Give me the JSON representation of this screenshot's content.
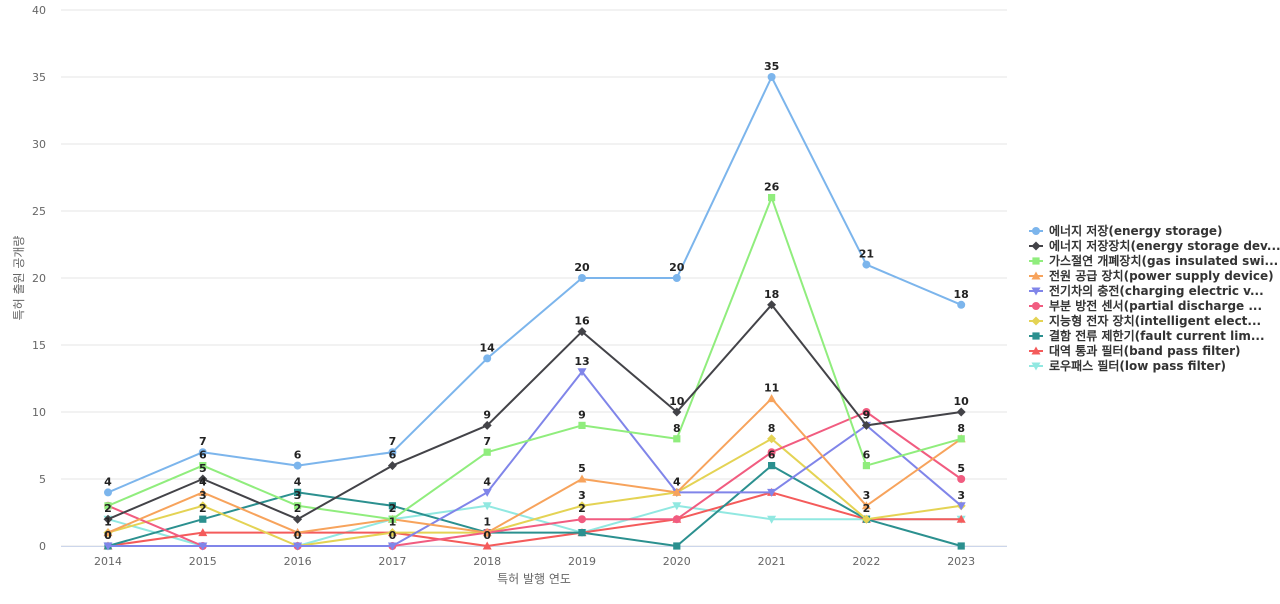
{
  "chart_data": {
    "type": "line",
    "xlabel": "특허 발행 연도",
    "ylabel": "특허 출원 공개량",
    "ylim": [
      0,
      40
    ],
    "yticks": [
      0,
      5,
      10,
      15,
      20,
      25,
      30,
      35,
      40
    ],
    "grid": true,
    "legend_position": "right",
    "categories": [
      "2014",
      "2015",
      "2016",
      "2017",
      "2018",
      "2019",
      "2020",
      "2021",
      "2022",
      "2023"
    ],
    "series": [
      {
        "name": "에너지 저장(energy storage)",
        "color": "#7cb5ec",
        "marker": "circle",
        "values": [
          4,
          7,
          6,
          7,
          14,
          20,
          20,
          35,
          21,
          18
        ]
      },
      {
        "name": "에너지 저장장치(energy storage dev...",
        "color": "#434348",
        "marker": "diamond",
        "values": [
          2,
          5,
          2,
          6,
          9,
          16,
          10,
          18,
          9,
          10
        ]
      },
      {
        "name": "가스절연 개폐장치(gas insulated swi...",
        "color": "#90ed7d",
        "marker": "square",
        "values": [
          3,
          6,
          3,
          2,
          7,
          9,
          8,
          26,
          6,
          8
        ]
      },
      {
        "name": "전원 공급 장치(power supply device)",
        "color": "#f7a35c",
        "marker": "triangle",
        "values": [
          1,
          4,
          1,
          2,
          1,
          5,
          4,
          11,
          3,
          8
        ]
      },
      {
        "name": "전기차의 충전(charging electric v...",
        "color": "#8085e9",
        "marker": "triangle-down",
        "values": [
          0,
          0,
          0,
          0,
          4,
          13,
          4,
          4,
          9,
          3
        ]
      },
      {
        "name": "부분 방전 센서(partial discharge ...",
        "color": "#f15c80",
        "marker": "circle",
        "values": [
          3,
          0,
          0,
          0,
          1,
          2,
          2,
          7,
          10,
          5
        ]
      },
      {
        "name": "지능형 전자 장치(intelligent elect...",
        "color": "#e4d354",
        "marker": "diamond",
        "values": [
          1,
          3,
          0,
          1,
          1,
          3,
          4,
          8,
          2,
          3
        ]
      },
      {
        "name": "결함 전류 제한기(fault current lim...",
        "color": "#2b908f",
        "marker": "square",
        "values": [
          0,
          2,
          4,
          3,
          1,
          1,
          0,
          6,
          2,
          0
        ]
      },
      {
        "name": "대역 통과 필터(band pass filter)",
        "color": "#f45b5b",
        "marker": "triangle",
        "values": [
          0,
          1,
          1,
          1,
          0,
          1,
          2,
          4,
          2,
          2
        ]
      },
      {
        "name": "로우패스 필터(low pass filter)",
        "color": "#91e8e1",
        "marker": "triangle-down",
        "values": [
          2,
          0,
          0,
          2,
          3,
          1,
          3,
          2,
          2,
          2
        ]
      }
    ],
    "data_labels": [
      {
        "series": 0,
        "points": [
          0,
          1,
          2,
          3,
          4,
          5,
          6,
          7,
          8,
          9
        ]
      },
      {
        "series": 1,
        "points": [
          1,
          2,
          3,
          4,
          5,
          6,
          7,
          8,
          9
        ]
      },
      {
        "series": 2,
        "points": [
          1,
          2,
          3,
          4,
          5,
          6,
          7,
          8,
          9
        ]
      },
      {
        "series": 3,
        "points": [
          0,
          1,
          3,
          5,
          6,
          7,
          8
        ]
      },
      {
        "series": 4,
        "points": [
          0,
          2,
          4,
          5,
          8
        ]
      },
      {
        "series": 5,
        "points": [
          3,
          5,
          9
        ]
      },
      {
        "series": 6,
        "points": [
          1,
          3,
          5,
          6,
          7,
          8,
          9
        ]
      },
      {
        "series": 7,
        "points": [
          1,
          2,
          4,
          7
        ]
      },
      {
        "series": 8,
        "points": [
          0,
          4
        ]
      },
      {
        "series": 9,
        "points": [
          0
        ]
      }
    ]
  }
}
